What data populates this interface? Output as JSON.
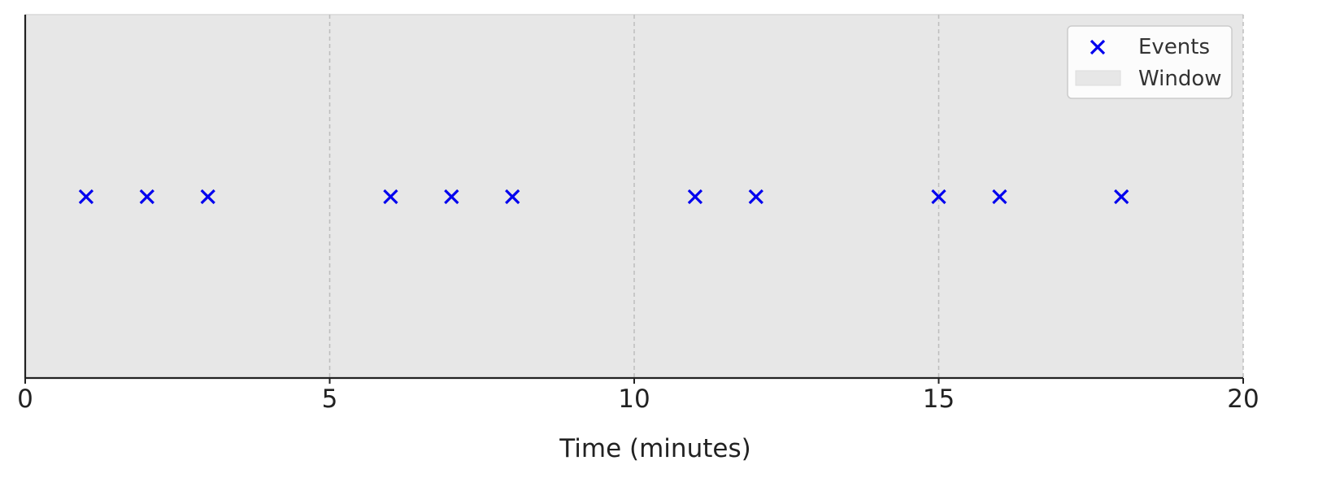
{
  "chart_data": {
    "type": "scatter",
    "xlabel": "Time (minutes)",
    "ylabel": "",
    "xlim": [
      0,
      20
    ],
    "xticks": [
      0,
      5,
      10,
      15,
      20
    ],
    "grid": "vertical dashed at x ticks",
    "legend_position": "top-right",
    "series": [
      {
        "name": "Events",
        "marker": "x",
        "color": "#0000ee",
        "x": [
          1,
          2,
          3,
          6,
          7,
          8,
          11,
          12,
          15,
          16,
          18
        ]
      }
    ],
    "window": {
      "label": "Window",
      "x_range": [
        0,
        20
      ],
      "color": "#e7e7e7"
    }
  }
}
